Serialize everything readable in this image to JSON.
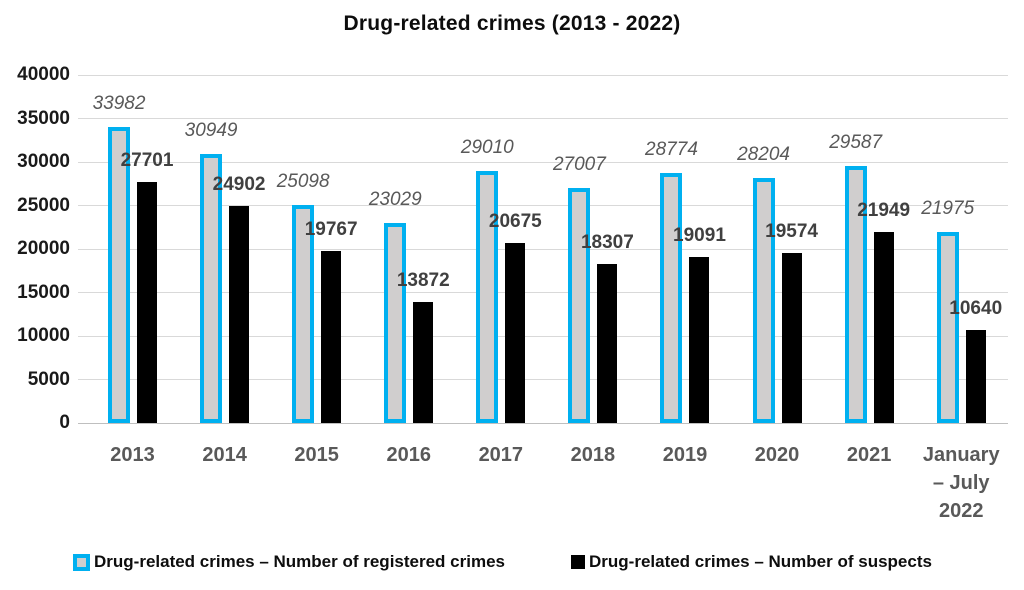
{
  "chart_data": {
    "type": "bar",
    "title": "Drug-related crimes (2013 - 2022)",
    "categories": [
      "2013",
      "2014",
      "2015",
      "2016",
      "2017",
      "2018",
      "2019",
      "2020",
      "2021",
      "January – July 2022"
    ],
    "series": [
      {
        "name": "Drug-related crimes – Number of registered crimes",
        "values": [
          33982,
          30949,
          25098,
          23029,
          29010,
          27007,
          28774,
          28204,
          29587,
          21975
        ],
        "bar_style": "gray fill with cyan outline",
        "label_style": "italic gray"
      },
      {
        "name": "Drug-related crimes – Number of suspects",
        "values": [
          27701,
          24902,
          19767,
          13872,
          20675,
          18307,
          19091,
          19574,
          21949,
          10640
        ],
        "bar_style": "solid black",
        "label_style": "bold dark gray"
      }
    ],
    "ylim": [
      0,
      40000
    ],
    "ytick_step": 5000,
    "ytick_labels": [
      "0",
      "5000",
      "10000",
      "15000",
      "20000",
      "25000",
      "30000",
      "35000",
      "40000"
    ],
    "grid": "horizontal gridlines on",
    "legend_position": "bottom",
    "data_labels": "shown above every bar",
    "colors": {
      "registered_border": "#00B0F0",
      "registered_fill": "#D0CECE",
      "suspects_fill": "#000000",
      "gridline": "#D9D9D9",
      "axis_line": "#BFBFBF",
      "label_registered": "#595959",
      "label_suspects": "#404040",
      "category_label": "#595959",
      "title_color": "#0D0D0D"
    }
  }
}
